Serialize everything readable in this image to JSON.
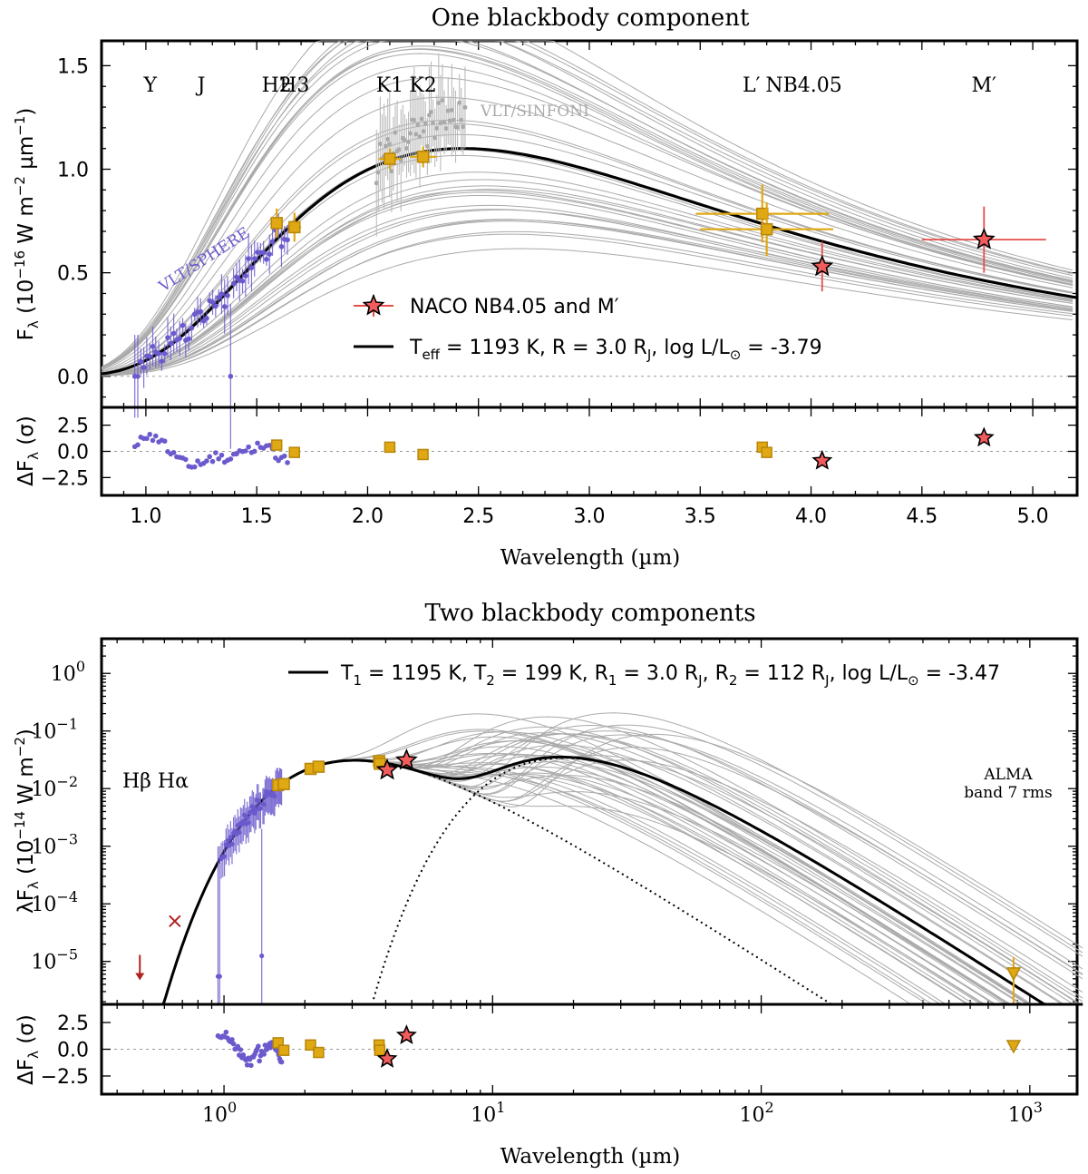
{
  "chart_data": [
    {
      "type": "line",
      "title": "One blackbody component",
      "xlabel": "Wavelength (µm)",
      "ylabel": "F_λ (10^-16 W m^-2 µm^-1)",
      "ylabel_parts": {
        "main": "F",
        "sub": "λ",
        "rest": " (10",
        "exp1": "−16",
        "mid": " W m",
        "exp2": "−2",
        "mid2": " µm",
        "exp3": "−1",
        "end": ")"
      },
      "resid_ylabel": "ΔF_λ (σ)",
      "xlim": [
        0.8,
        5.2
      ],
      "ylim": [
        -0.15,
        1.62
      ],
      "xticks": [
        "1.0",
        "1.5",
        "2.0",
        "2.5",
        "3.0",
        "3.5",
        "4.0",
        "4.5",
        "5.0"
      ],
      "xtick_values": [
        1.0,
        1.5,
        2.0,
        2.5,
        3.0,
        3.5,
        4.0,
        4.5,
        5.0
      ],
      "yticks": [
        "0.0",
        "0.5",
        "1.0",
        "1.5"
      ],
      "ytick_values": [
        0.0,
        0.5,
        1.0,
        1.5
      ],
      "resid_ylim": [
        -4.2,
        4.2
      ],
      "resid_yticks": [
        "2.5",
        "0.0",
        "−2.5"
      ],
      "resid_ytick_values": [
        2.5,
        0.0,
        -2.5
      ],
      "band_labels": [
        {
          "text": "Y",
          "x": 1.02
        },
        {
          "text": "J",
          "x": 1.25
        },
        {
          "text": "H2",
          "x": 1.59
        },
        {
          "text": "H3",
          "x": 1.67
        },
        {
          "text": "K1",
          "x": 2.1
        },
        {
          "text": "K2",
          "x": 2.25
        },
        {
          "text": "L′",
          "x": 3.8
        },
        {
          "text": "NB4.05",
          "x": 4.05
        },
        {
          "text": "M′",
          "x": 4.78
        }
      ],
      "instrument_labels": {
        "sphere": "VLT/SPHERE",
        "sinfoni": "VLT/SINFONI"
      },
      "legend": [
        {
          "label": "NACO NB4.05 and M′",
          "marker": "star"
        },
        {
          "label": "T_eff = 1193 K, R = 3.0 R_J, log L/L⊙ = -3.79",
          "parts": {
            "a": "T",
            "a_sub": "eff",
            "b": " = 1193 K, R = 3.0 R",
            "b_sub": "J",
            "c": ", log L/L",
            "c_sub": "⊙",
            "d": " = -3.79"
          }
        }
      ],
      "model": {
        "teff": 1193,
        "radius_rj": 3.0,
        "peak_flux": 1.1
      },
      "photometry": [
        {
          "band": "H2",
          "x": 1.59,
          "y": 0.74,
          "xerr": 0.02,
          "yerr": 0.07,
          "resid": 0.6
        },
        {
          "band": "H3",
          "x": 1.67,
          "y": 0.72,
          "xerr": 0.03,
          "yerr": 0.07,
          "resid": -0.1
        },
        {
          "band": "K1",
          "x": 2.1,
          "y": 1.05,
          "xerr": 0.05,
          "yerr": 0.05,
          "resid": 0.4
        },
        {
          "band": "K2",
          "x": 2.25,
          "y": 1.06,
          "xerr": 0.06,
          "yerr": 0.05,
          "resid": -0.3
        },
        {
          "band": "L′",
          "x": 3.78,
          "y": 0.785,
          "xerr": 0.3,
          "yerr": 0.14,
          "resid": 0.4
        },
        {
          "band": "L′b",
          "x": 3.8,
          "y": 0.71,
          "xerr": 0.3,
          "yerr": 0.13,
          "resid": -0.1
        }
      ],
      "naco": [
        {
          "band": "NB4.05",
          "x": 4.05,
          "y": 0.53,
          "xerr": 0.03,
          "yerr": 0.12,
          "resid": -0.9
        },
        {
          "band": "M′",
          "x": 4.78,
          "y": 0.66,
          "xerr": 0.28,
          "yerr": 0.16,
          "resid": 1.3
        }
      ]
    },
    {
      "type": "line",
      "title": "Two blackbody components",
      "xlabel": "Wavelength (µm)",
      "ylabel": "λF_λ (10^-14 W m^-2)",
      "ylabel_parts": {
        "main": "λF",
        "sub": "λ",
        "rest": " (10",
        "exp1": "−14",
        "mid": " W m",
        "exp2": "−2",
        "end": ")"
      },
      "resid_ylabel": "ΔF_λ (σ)",
      "xscale": "log",
      "yscale": "log",
      "xlim": [
        0.35,
        1500
      ],
      "ylim": [
        1.8e-06,
        4.0
      ],
      "xticks": [
        {
          "base": "10",
          "exp": "0",
          "v": 1
        },
        {
          "base": "10",
          "exp": "1",
          "v": 10
        },
        {
          "base": "10",
          "exp": "2",
          "v": 100
        },
        {
          "base": "10",
          "exp": "3",
          "v": 1000
        }
      ],
      "yticks": [
        {
          "base": "10",
          "exp": "−5",
          "v": 1e-05
        },
        {
          "base": "10",
          "exp": "−4",
          "v": 0.0001
        },
        {
          "base": "10",
          "exp": "−3",
          "v": 0.001
        },
        {
          "base": "10",
          "exp": "−2",
          "v": 0.01
        },
        {
          "base": "10",
          "exp": "−1",
          "v": 0.1
        },
        {
          "base": "10",
          "exp": "0",
          "v": 1
        }
      ],
      "resid_ylim": [
        -4.2,
        4.2
      ],
      "resid_yticks": [
        "2.5",
        "0.0",
        "−2.5"
      ],
      "resid_ytick_values": [
        2.5,
        0.0,
        -2.5
      ],
      "line_labels": [
        "Hβ",
        "Hα"
      ],
      "alma_label": [
        "ALMA",
        "band 7 rms"
      ],
      "legend": [
        {
          "label": "T_1 = 1195 K, T_2 = 199 K, R_1 = 3.0 R_J, R_2 = 112 R_J, log L/L⊙ = -3.47",
          "parts": {
            "a": "T",
            "a_sub": "1",
            "b": " = 1195 K, T",
            "b_sub": "2",
            "c": " = 199 K, R",
            "c_sub": "1",
            "d": " = 3.0 R",
            "d_sub": "J",
            "e": ", R",
            "e_sub": "2",
            "f": " = 112 R",
            "f_sub": "J",
            "g": ", log L/L",
            "g_sub": "⊙",
            "h": " = -3.47"
          }
        }
      ],
      "model": {
        "t1": 1195,
        "t2": 199,
        "r1_rj": 3.0,
        "r2_rj": 112
      },
      "photometry": [
        {
          "x": 1.59,
          "y": 0.0115,
          "resid": 0.6
        },
        {
          "x": 1.67,
          "y": 0.012,
          "resid": -0.1
        },
        {
          "x": 2.1,
          "y": 0.022,
          "resid": 0.4
        },
        {
          "x": 2.25,
          "y": 0.024,
          "resid": -0.3
        },
        {
          "x": 3.78,
          "y": 0.03,
          "resid": 0.4
        },
        {
          "x": 3.8,
          "y": 0.027,
          "resid": -0.1
        }
      ],
      "naco": [
        {
          "x": 4.05,
          "y": 0.021,
          "resid": -0.9
        },
        {
          "x": 4.78,
          "y": 0.031,
          "resid": 1.3
        }
      ],
      "halpha_limit": {
        "x": 0.656,
        "y": 5e-05
      },
      "hbeta_limit": {
        "x": 0.486,
        "y": 1.3e-05
      },
      "alma": {
        "x": 870,
        "y": 6.2e-06,
        "resid": 0.3
      }
    }
  ]
}
